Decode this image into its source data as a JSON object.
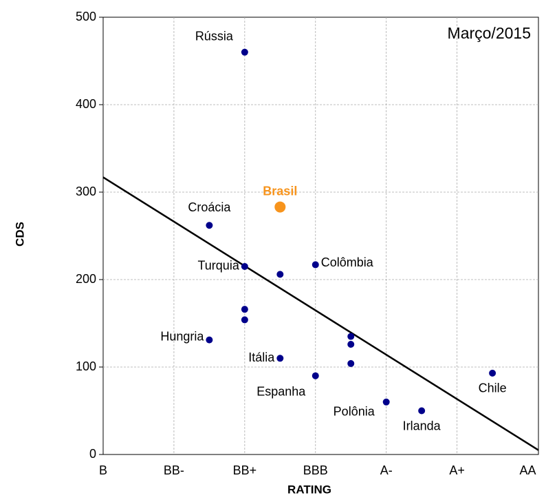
{
  "chart_data": {
    "type": "scatter",
    "annotation": "Março/2015",
    "xlabel": "RATING",
    "ylabel": "CDS",
    "xlim": [
      0,
      12.3
    ],
    "xticks": [
      {
        "value": 0,
        "label": "B"
      },
      {
        "value": 2,
        "label": "BB-"
      },
      {
        "value": 4,
        "label": "BB+"
      },
      {
        "value": 6,
        "label": "BBB"
      },
      {
        "value": 8,
        "label": "A-"
      },
      {
        "value": 10,
        "label": "A+"
      },
      {
        "value": 12,
        "label": "AA"
      }
    ],
    "ylim": [
      0,
      500
    ],
    "yticks": [
      0,
      100,
      200,
      300,
      400,
      500
    ],
    "grid": true,
    "series": [
      {
        "color": "#00008b",
        "x": [
          4,
          3,
          4,
          6,
          5,
          4,
          4,
          3,
          5,
          6,
          7,
          7,
          7,
          8,
          9,
          11
        ],
        "values": [
          460,
          262,
          215,
          217,
          206,
          166,
          154,
          131,
          110,
          90,
          135,
          126,
          104,
          60,
          50,
          93
        ],
        "labels": [
          "Rússia",
          "Croácia",
          "Turquia",
          "Colômbia",
          null,
          null,
          null,
          "Hungria",
          "Itália",
          "Espanha",
          null,
          null,
          null,
          "Polônia",
          "Irlanda",
          "Chile"
        ]
      },
      {
        "color": "#f7941d",
        "x": [
          5
        ],
        "values": [
          283
        ],
        "labels": [
          "Brasil"
        ]
      }
    ],
    "trendline": {
      "color": "#000000",
      "x": [
        0,
        12.3
      ],
      "values": [
        317,
        5
      ]
    }
  }
}
